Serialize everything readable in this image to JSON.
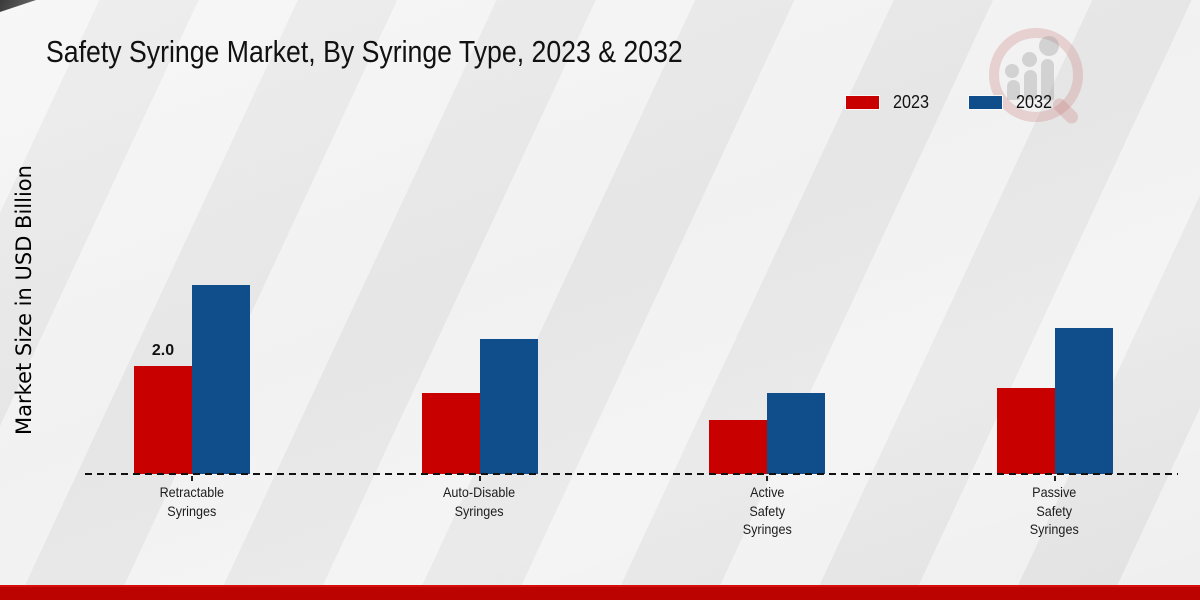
{
  "page": {
    "title": "Safety Syringe Market, By Syringe Type, 2023 & 2032"
  },
  "chart_data": {
    "type": "bar",
    "title": "Safety Syringe Market, By Syringe Type, 2023 & 2032",
    "xlabel": "",
    "ylabel": "Market Size in USD Billion",
    "categories": [
      "Retractable Syringes",
      "Auto-Disable Syringes",
      "Active Safety Syringes",
      "Passive Safety Syringes"
    ],
    "category_label_lines": [
      [
        "Retractable",
        "Syringes"
      ],
      [
        "Auto-Disable",
        "Syringes"
      ],
      [
        "Active",
        "Safety",
        "Syringes"
      ],
      [
        "Passive",
        "Safety",
        "Syringes"
      ]
    ],
    "series": [
      {
        "name": "2023",
        "color": "#c80000",
        "values": [
          2.0,
          1.5,
          1.0,
          1.6
        ]
      },
      {
        "name": "2032",
        "color": "#0f4e8b",
        "values": [
          3.5,
          2.5,
          1.5,
          2.7
        ]
      }
    ],
    "data_labels": [
      {
        "series": "2023",
        "category_index": 0,
        "text": "2.0"
      }
    ],
    "ylim": [
      0,
      3.6
    ],
    "grid": false,
    "legend_position": "top-right",
    "baseline_style": "dashed",
    "unit": "USD Billion"
  },
  "branding": {
    "watermark_icon": "magnifier-bar-chart-logo",
    "footer_color": "#bb0302",
    "accent_red": "#c80000",
    "accent_blue": "#0f4e8b"
  }
}
